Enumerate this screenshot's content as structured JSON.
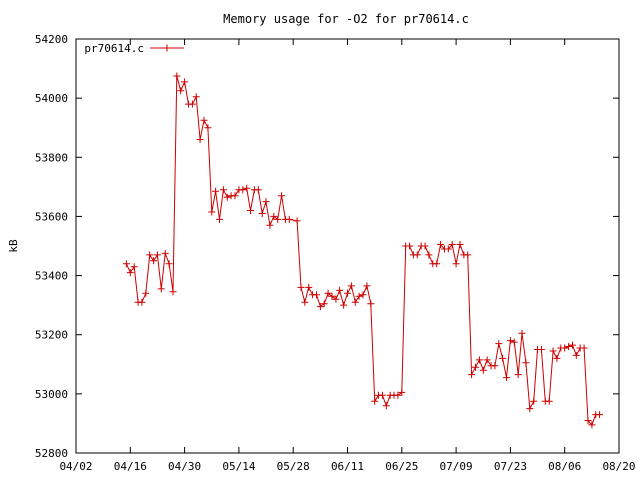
{
  "chart_data": {
    "type": "line",
    "title": "Memory usage for -O2 for pr70614.c",
    "xlabel": "",
    "ylabel": "kB",
    "ylim": [
      52800,
      54200
    ],
    "yticks": [
      52800,
      53000,
      53200,
      53400,
      53600,
      53800,
      54000,
      54200
    ],
    "xlim": [
      "2016-04-02",
      "2016-08-20"
    ],
    "xticks": [
      {
        "date": "2016-04-02",
        "label": "04/02"
      },
      {
        "date": "2016-04-16",
        "label": "04/16"
      },
      {
        "date": "2016-04-30",
        "label": "04/30"
      },
      {
        "date": "2016-05-14",
        "label": "05/14"
      },
      {
        "date": "2016-05-28",
        "label": "05/28"
      },
      {
        "date": "2016-06-11",
        "label": "06/11"
      },
      {
        "date": "2016-06-25",
        "label": "06/25"
      },
      {
        "date": "2016-07-09",
        "label": "07/09"
      },
      {
        "date": "2016-07-23",
        "label": "07/23"
      },
      {
        "date": "2016-08-06",
        "label": "08/06"
      },
      {
        "date": "2016-08-20",
        "label": "08/20"
      }
    ],
    "grid": false,
    "legend_position": "top-left",
    "series": [
      {
        "name": "pr70614.c",
        "color": "#cc0000",
        "marker": "plus",
        "points": [
          [
            "2016-04-15",
            53440
          ],
          [
            "2016-04-16",
            53410
          ],
          [
            "2016-04-17",
            53430
          ],
          [
            "2016-04-18",
            53310
          ],
          [
            "2016-04-19",
            53310
          ],
          [
            "2016-04-20",
            53340
          ],
          [
            "2016-04-21",
            53470
          ],
          [
            "2016-04-22",
            53450
          ],
          [
            "2016-04-23",
            53470
          ],
          [
            "2016-04-24",
            53355
          ],
          [
            "2016-04-25",
            53475
          ],
          [
            "2016-04-26",
            53440
          ],
          [
            "2016-04-27",
            53345
          ],
          [
            "2016-04-28",
            54075
          ],
          [
            "2016-04-29",
            54025
          ],
          [
            "2016-04-30",
            54055
          ],
          [
            "2016-05-01",
            53980
          ],
          [
            "2016-05-02",
            53980
          ],
          [
            "2016-05-03",
            54005
          ],
          [
            "2016-05-04",
            53860
          ],
          [
            "2016-05-05",
            53925
          ],
          [
            "2016-05-06",
            53900
          ],
          [
            "2016-05-07",
            53615
          ],
          [
            "2016-05-08",
            53685
          ],
          [
            "2016-05-09",
            53590
          ],
          [
            "2016-05-10",
            53690
          ],
          [
            "2016-05-11",
            53665
          ],
          [
            "2016-05-12",
            53670
          ],
          [
            "2016-05-13",
            53670
          ],
          [
            "2016-05-14",
            53690
          ],
          [
            "2016-05-15",
            53690
          ],
          [
            "2016-05-16",
            53695
          ],
          [
            "2016-05-17",
            53620
          ],
          [
            "2016-05-18",
            53690
          ],
          [
            "2016-05-19",
            53690
          ],
          [
            "2016-05-20",
            53610
          ],
          [
            "2016-05-21",
            53650
          ],
          [
            "2016-05-22",
            53570
          ],
          [
            "2016-05-23",
            53600
          ],
          [
            "2016-05-24",
            53590
          ],
          [
            "2016-05-25",
            53670
          ],
          [
            "2016-05-26",
            53590
          ],
          [
            "2016-05-27",
            53590
          ],
          [
            "2016-05-29",
            53585
          ],
          [
            "2016-05-30",
            53360
          ],
          [
            "2016-05-31",
            53310
          ],
          [
            "2016-06-01",
            53360
          ],
          [
            "2016-06-02",
            53335
          ],
          [
            "2016-06-03",
            53335
          ],
          [
            "2016-06-04",
            53295
          ],
          [
            "2016-06-05",
            53305
          ],
          [
            "2016-06-06",
            53340
          ],
          [
            "2016-06-07",
            53330
          ],
          [
            "2016-06-08",
            53320
          ],
          [
            "2016-06-09",
            53350
          ],
          [
            "2016-06-10",
            53300
          ],
          [
            "2016-06-11",
            53340
          ],
          [
            "2016-06-12",
            53365
          ],
          [
            "2016-06-13",
            53310
          ],
          [
            "2016-06-14",
            53330
          ],
          [
            "2016-06-15",
            53335
          ],
          [
            "2016-06-16",
            53365
          ],
          [
            "2016-06-17",
            53305
          ],
          [
            "2016-06-18",
            52975
          ],
          [
            "2016-06-19",
            52995
          ],
          [
            "2016-06-20",
            52995
          ],
          [
            "2016-06-21",
            52960
          ],
          [
            "2016-06-22",
            52995
          ],
          [
            "2016-06-23",
            52995
          ],
          [
            "2016-06-24",
            52995
          ],
          [
            "2016-06-25",
            53005
          ],
          [
            "2016-06-26",
            53500
          ],
          [
            "2016-06-27",
            53500
          ],
          [
            "2016-06-28",
            53470
          ],
          [
            "2016-06-29",
            53470
          ],
          [
            "2016-06-30",
            53500
          ],
          [
            "2016-07-01",
            53500
          ],
          [
            "2016-07-02",
            53470
          ],
          [
            "2016-07-03",
            53440
          ],
          [
            "2016-07-04",
            53440
          ],
          [
            "2016-07-05",
            53505
          ],
          [
            "2016-07-06",
            53490
          ],
          [
            "2016-07-07",
            53490
          ],
          [
            "2016-07-08",
            53505
          ],
          [
            "2016-07-09",
            53440
          ],
          [
            "2016-07-10",
            53505
          ],
          [
            "2016-07-11",
            53470
          ],
          [
            "2016-07-12",
            53470
          ],
          [
            "2016-07-13",
            53065
          ],
          [
            "2016-07-14",
            53090
          ],
          [
            "2016-07-15",
            53115
          ],
          [
            "2016-07-16",
            53080
          ],
          [
            "2016-07-17",
            53115
          ],
          [
            "2016-07-18",
            53095
          ],
          [
            "2016-07-19",
            53095
          ],
          [
            "2016-07-20",
            53170
          ],
          [
            "2016-07-21",
            53120
          ],
          [
            "2016-07-22",
            53055
          ],
          [
            "2016-07-23",
            53180
          ],
          [
            "2016-07-24",
            53175
          ],
          [
            "2016-07-25",
            53065
          ],
          [
            "2016-07-26",
            53205
          ],
          [
            "2016-07-27",
            53105
          ],
          [
            "2016-07-28",
            52950
          ],
          [
            "2016-07-29",
            52975
          ],
          [
            "2016-07-30",
            53150
          ],
          [
            "2016-07-31",
            53150
          ],
          [
            "2016-08-01",
            52975
          ],
          [
            "2016-08-02",
            52975
          ],
          [
            "2016-08-03",
            53145
          ],
          [
            "2016-08-04",
            53120
          ],
          [
            "2016-08-05",
            53155
          ],
          [
            "2016-08-06",
            53155
          ],
          [
            "2016-08-07",
            53160
          ],
          [
            "2016-08-08",
            53165
          ],
          [
            "2016-08-09",
            53130
          ],
          [
            "2016-08-10",
            53155
          ],
          [
            "2016-08-11",
            53155
          ],
          [
            "2016-08-12",
            52910
          ],
          [
            "2016-08-13",
            52895
          ],
          [
            "2016-08-14",
            52930
          ],
          [
            "2016-08-15",
            52930
          ]
        ]
      }
    ]
  }
}
